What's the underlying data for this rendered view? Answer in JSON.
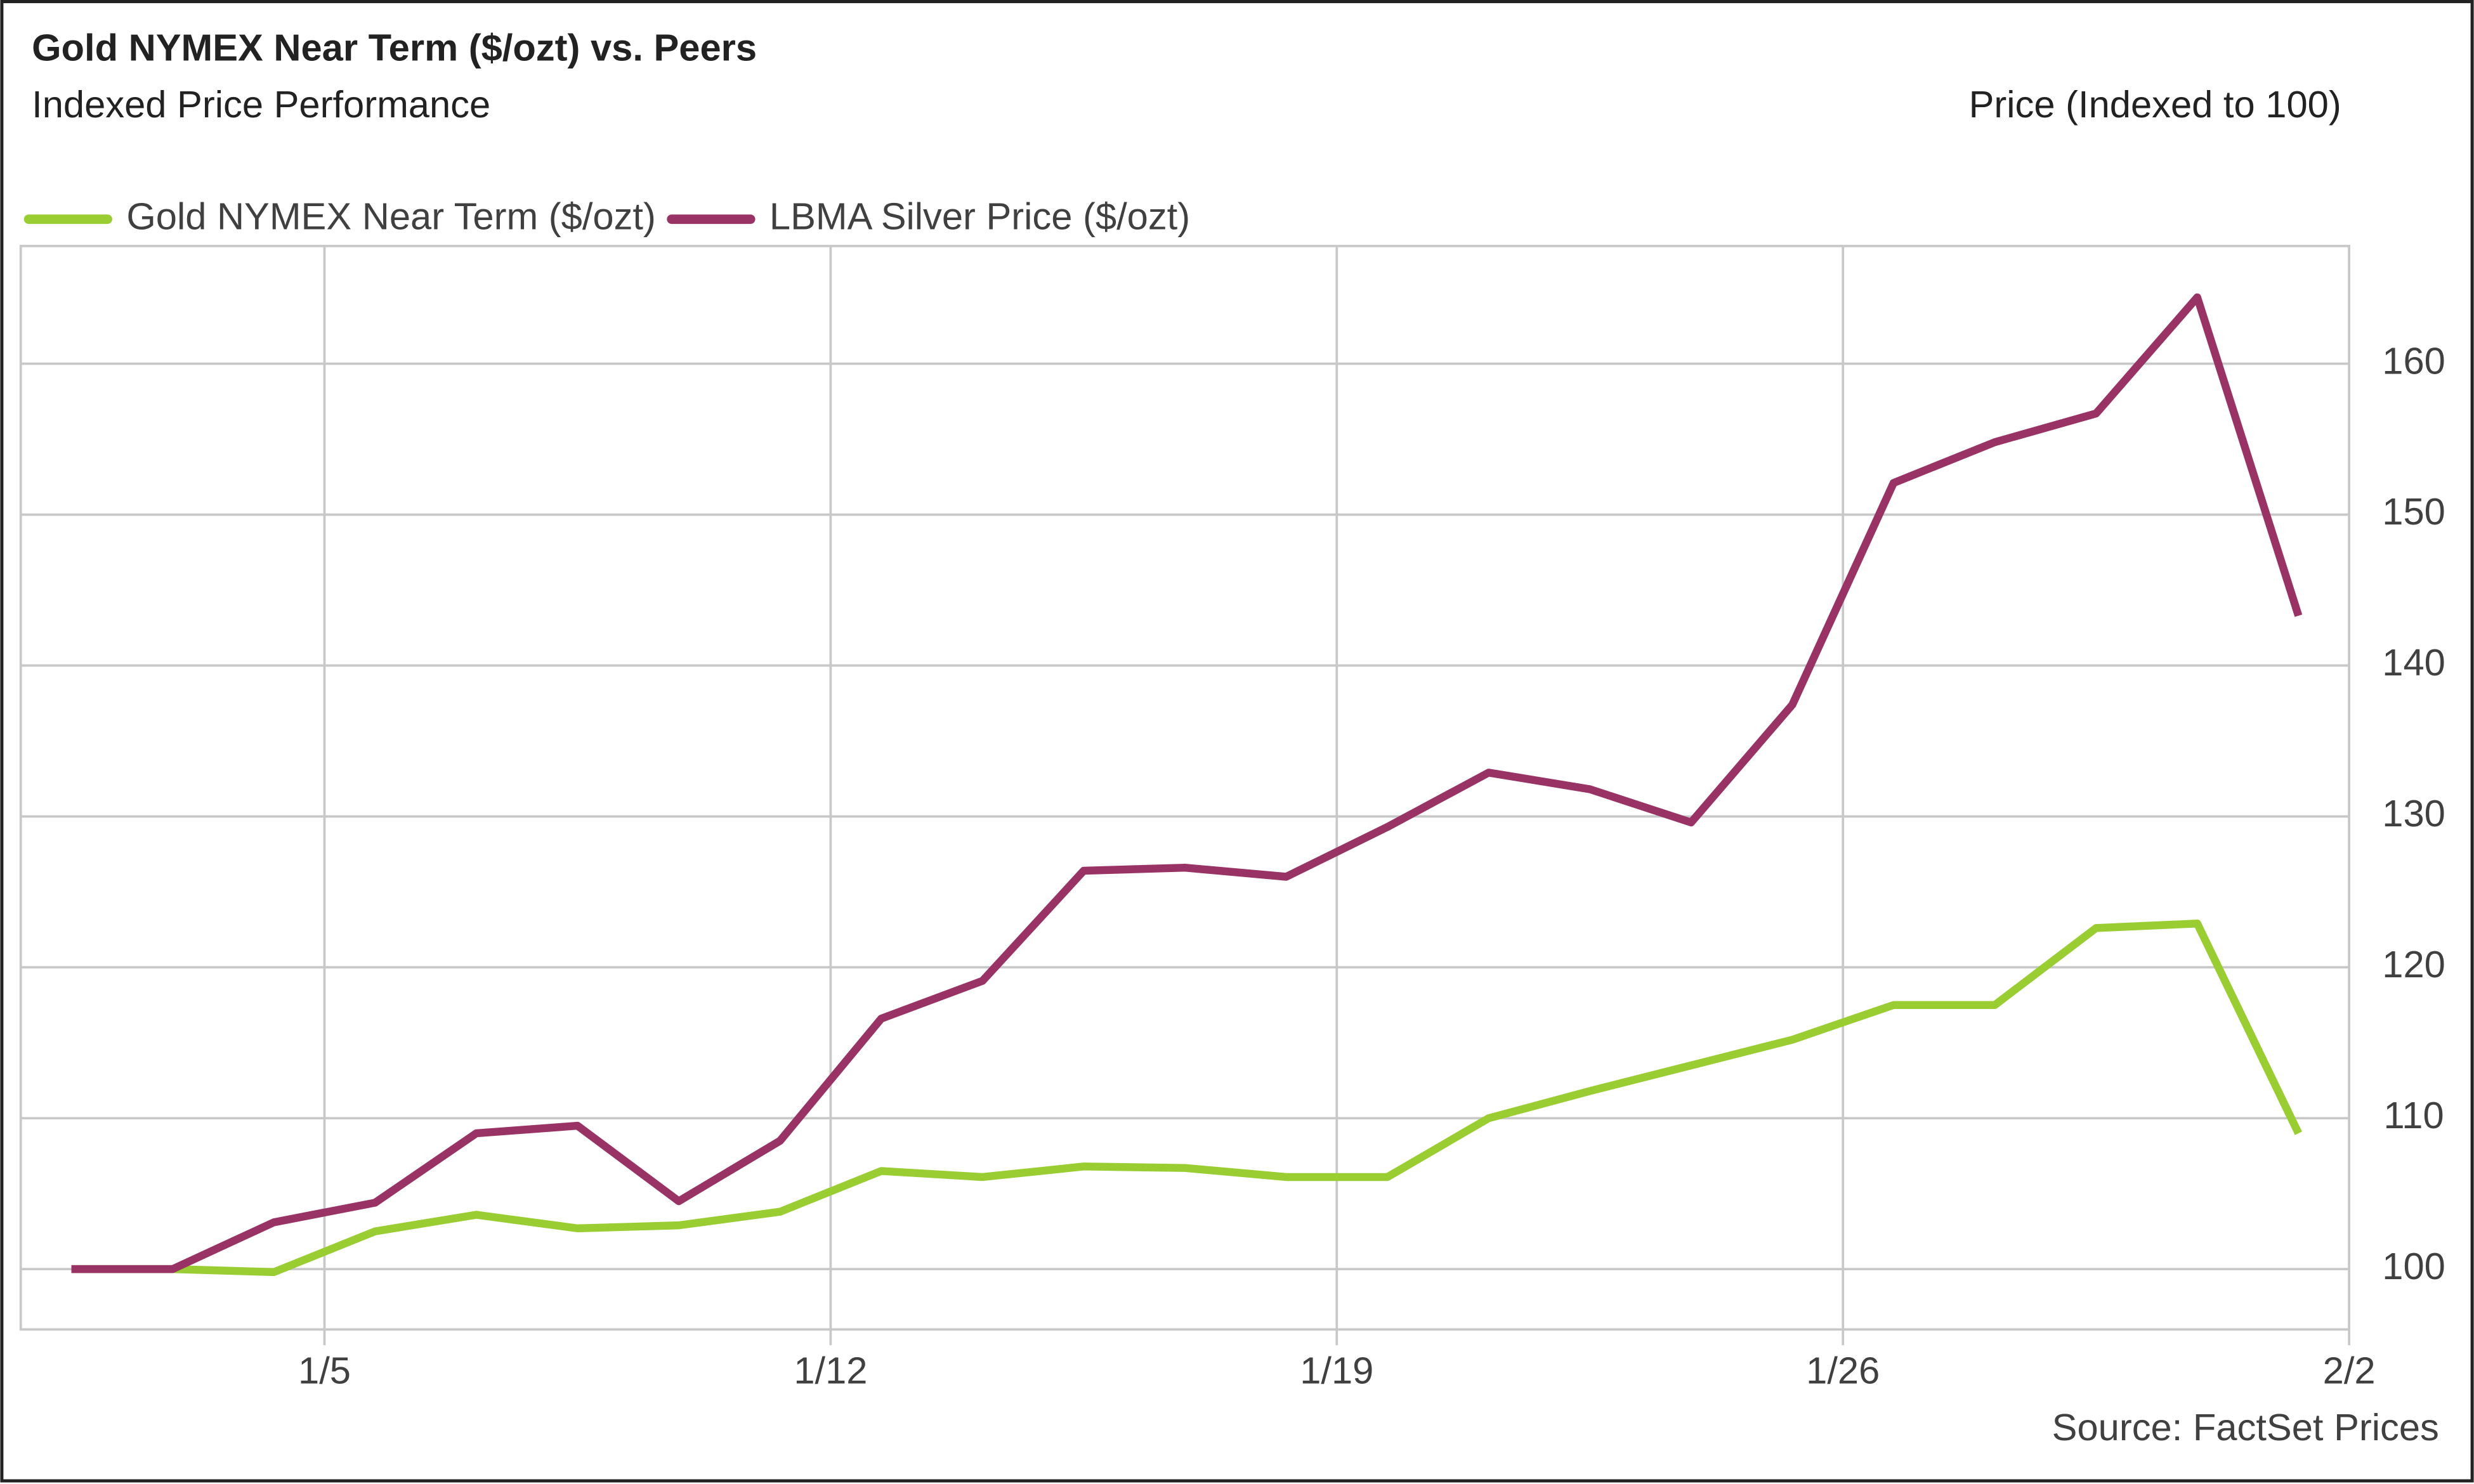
{
  "chart_data": {
    "type": "line",
    "title": "Gold NYMEX Near Term ($/ozt) vs. Peers",
    "subtitle": "Indexed Price Performance",
    "y_axis_label": "Price (Indexed to 100)",
    "source": "Source: FactSet Prices",
    "x": [
      0,
      1,
      2,
      3,
      4,
      5,
      6,
      7,
      8,
      9,
      10,
      11,
      12,
      13,
      14,
      15,
      16,
      17,
      18,
      19,
      20,
      21,
      22
    ],
    "xlim": [
      -0.5,
      22.5
    ],
    "xticks": [
      {
        "value": 2.5,
        "label": "1/5"
      },
      {
        "value": 7.5,
        "label": "1/12"
      },
      {
        "value": 12.5,
        "label": "1/19"
      },
      {
        "value": 17.5,
        "label": "1/26"
      },
      {
        "value": 22.5,
        "label": "2/2"
      }
    ],
    "ylim": [
      96,
      167.8
    ],
    "yticks": [
      100,
      110,
      120,
      130,
      140,
      150,
      160
    ],
    "grid": true,
    "legend": "top-left",
    "series": [
      {
        "name": "Gold NYMEX Near Term ($/ozt)",
        "color": "#9acd32",
        "values": [
          100,
          100,
          99.8,
          102.5,
          103.6,
          102.7,
          102.9,
          103.8,
          106.5,
          106.1,
          106.8,
          106.7,
          106.1,
          106.1,
          110.0,
          111.8,
          113.5,
          115.2,
          117.5,
          117.5,
          122.6,
          122.9,
          109.0
        ]
      },
      {
        "name": "LBMA Silver Price ($/ozt)",
        "color": "#993366",
        "values": [
          100,
          100,
          103.1,
          104.4,
          109.0,
          109.5,
          104.5,
          108.5,
          116.6,
          119.1,
          126.4,
          126.6,
          126.0,
          129.3,
          132.9,
          131.8,
          129.6,
          137.4,
          152.1,
          154.8,
          156.7,
          164.4,
          143.3
        ]
      }
    ]
  }
}
